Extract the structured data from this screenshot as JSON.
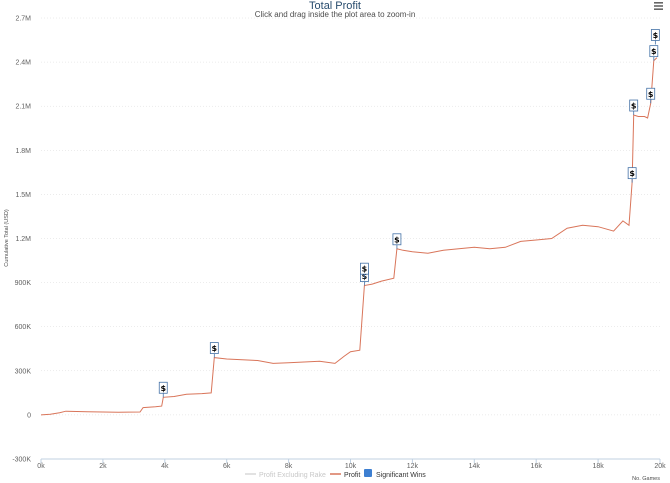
{
  "menu_icon": "hamburger-menu-icon",
  "colors": {
    "profit": "#d9755a",
    "profit_excluding_rake": "#d8d8d8",
    "significant_wins": "#3d7fd1",
    "flag_border": "#4572a7",
    "title": "#274b6d",
    "grid": "#d8d8d8"
  },
  "chart_data": {
    "type": "line",
    "title": "Total Profit",
    "subtitle": "Click and drag inside the plot area to zoom-in",
    "xlabel": "No. Games",
    "ylabel": "Cumulative Total (USD)",
    "xlim": [
      0,
      20000
    ],
    "ylim": [
      -300000,
      2700000
    ],
    "x_ticks": [
      "0k",
      "2k",
      "4k",
      "6k",
      "8k",
      "10k",
      "12k",
      "14k",
      "16k",
      "18k",
      "20k"
    ],
    "y_ticks": [
      "-300K",
      "0",
      "300K",
      "600K",
      "900K",
      "1.2M",
      "1.5M",
      "1.8M",
      "2.1M",
      "2.4M",
      "2.7M"
    ],
    "grid": "horizontal",
    "legend_placement": "bottom-center",
    "legend": [
      "Profit Excluding Rake",
      "Profit",
      "Significant Wins"
    ],
    "series": [
      {
        "name": "Profit",
        "points": [
          [
            0,
            0
          ],
          [
            300,
            5000
          ],
          [
            600,
            15000
          ],
          [
            800,
            25000
          ],
          [
            1500,
            22000
          ],
          [
            2500,
            18000
          ],
          [
            3200,
            20000
          ],
          [
            3300,
            50000
          ],
          [
            3700,
            55000
          ],
          [
            3900,
            60000
          ],
          [
            3950,
            120000
          ],
          [
            4300,
            125000
          ],
          [
            4700,
            140000
          ],
          [
            5200,
            145000
          ],
          [
            5500,
            150000
          ],
          [
            5600,
            390000
          ],
          [
            6000,
            380000
          ],
          [
            6500,
            375000
          ],
          [
            7000,
            370000
          ],
          [
            7500,
            350000
          ],
          [
            8000,
            355000
          ],
          [
            8500,
            360000
          ],
          [
            9000,
            365000
          ],
          [
            9500,
            350000
          ],
          [
            9800,
            400000
          ],
          [
            10000,
            430000
          ],
          [
            10300,
            440000
          ],
          [
            10450,
            880000
          ],
          [
            10700,
            890000
          ],
          [
            11000,
            910000
          ],
          [
            11400,
            930000
          ],
          [
            11500,
            1130000
          ],
          [
            11700,
            1120000
          ],
          [
            12000,
            1110000
          ],
          [
            12500,
            1100000
          ],
          [
            13000,
            1120000
          ],
          [
            13500,
            1130000
          ],
          [
            14000,
            1140000
          ],
          [
            14500,
            1130000
          ],
          [
            15000,
            1140000
          ],
          [
            15500,
            1180000
          ],
          [
            16000,
            1190000
          ],
          [
            16500,
            1200000
          ],
          [
            17000,
            1270000
          ],
          [
            17500,
            1290000
          ],
          [
            18000,
            1280000
          ],
          [
            18500,
            1250000
          ],
          [
            18800,
            1320000
          ],
          [
            19000,
            1290000
          ],
          [
            19100,
            1580000
          ],
          [
            19150,
            2040000
          ],
          [
            19300,
            2030000
          ],
          [
            19500,
            2030000
          ],
          [
            19600,
            2020000
          ],
          [
            19700,
            2120000
          ],
          [
            19800,
            2410000
          ],
          [
            19900,
            2430000
          ]
        ]
      },
      {
        "name": "Significant Wins",
        "flag_label": "$",
        "points": [
          [
            3950,
            120000
          ],
          [
            5600,
            390000
          ],
          [
            10450,
            880000
          ],
          [
            10450,
            930000
          ],
          [
            11500,
            1130000
          ],
          [
            19100,
            1580000
          ],
          [
            19150,
            2040000
          ],
          [
            19700,
            2120000
          ],
          [
            19800,
            2410000
          ],
          [
            19850,
            2520000
          ]
        ]
      }
    ]
  }
}
